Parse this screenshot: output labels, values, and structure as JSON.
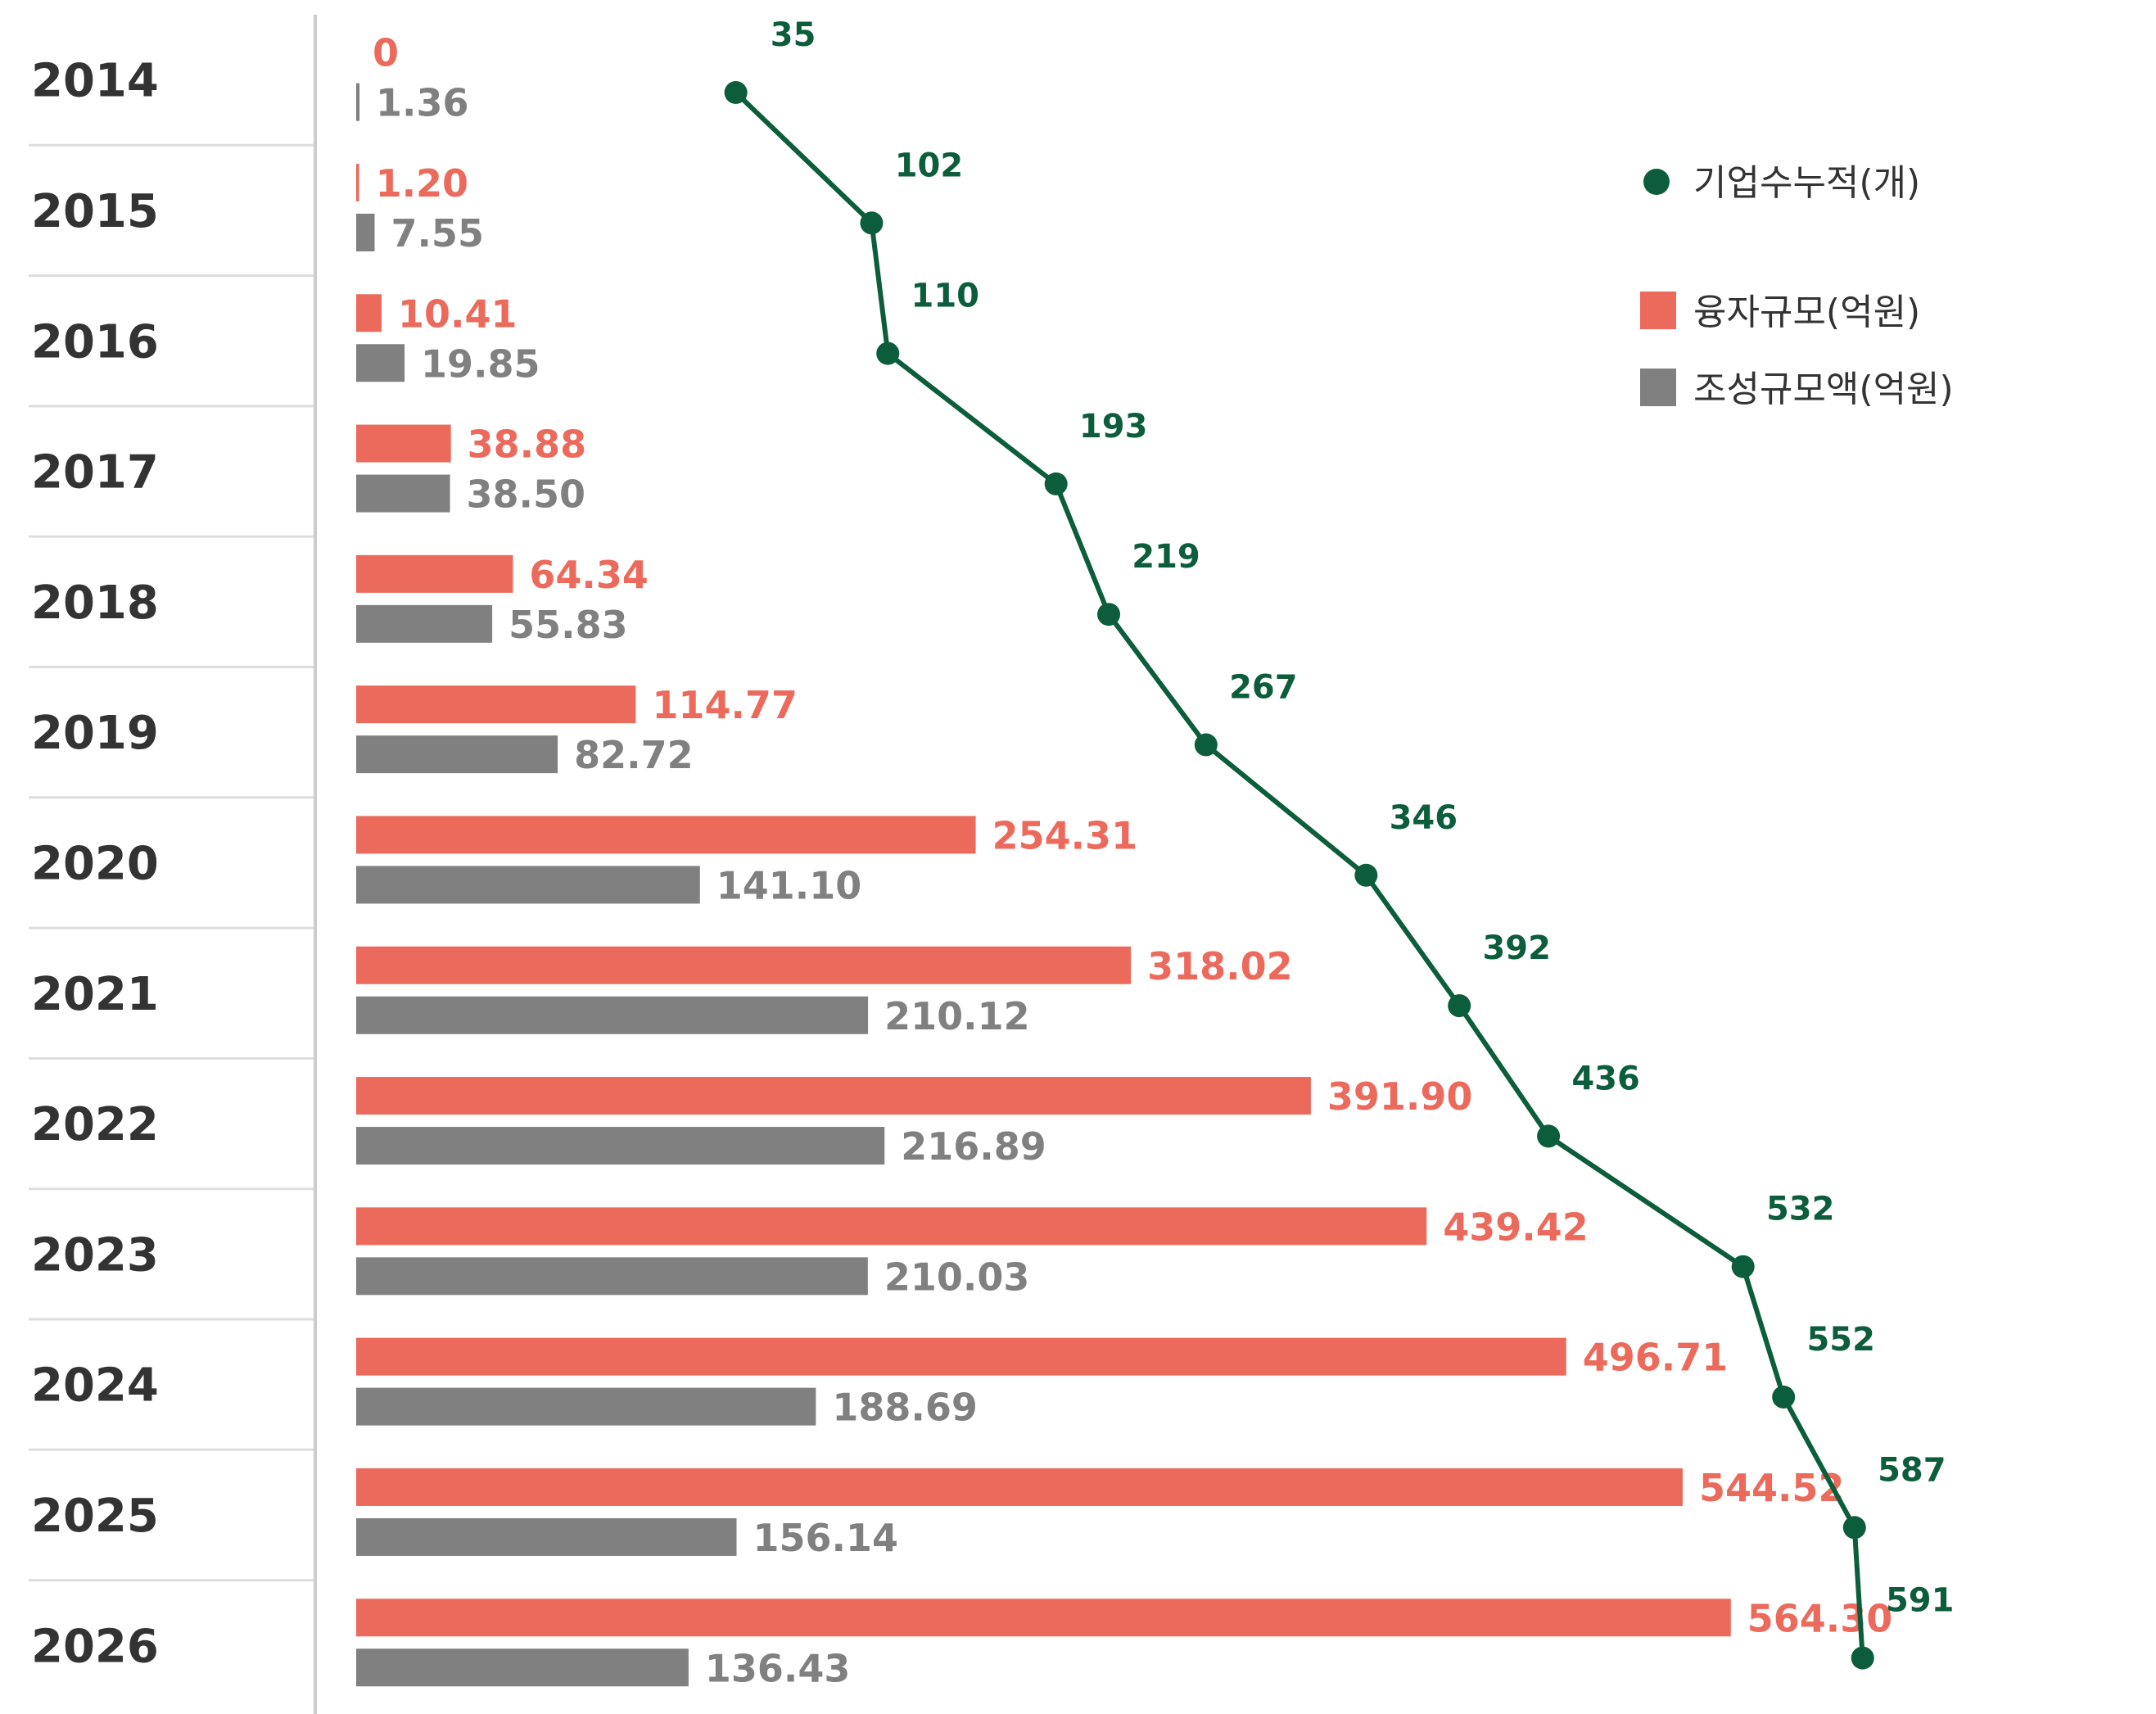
{
  "chart_data": {
    "type": "bar",
    "orientation": "horizontal",
    "categories": [
      "2014",
      "2015",
      "2016",
      "2017",
      "2018",
      "2019",
      "2020",
      "2021",
      "2022",
      "2023",
      "2024",
      "2025",
      "2026"
    ],
    "series": [
      {
        "name": "융자규모(억원)",
        "kind": "bar",
        "color": "#ec6a5c",
        "values": [
          0,
          1.2,
          10.41,
          38.88,
          64.34,
          114.77,
          254.31,
          318.02,
          391.9,
          439.42,
          496.71,
          544.52,
          564.3
        ],
        "labels": [
          "0",
          "1.20",
          "10.41",
          "38.88",
          "64.34",
          "114.77",
          "254.31",
          "318.02",
          "391.90",
          "439.42",
          "496.71",
          "544.52",
          "564.30"
        ]
      },
      {
        "name": "조성규모액(억원)",
        "kind": "bar",
        "color": "#808080",
        "values": [
          1.36,
          7.55,
          19.85,
          38.5,
          55.83,
          82.72,
          141.1,
          210.12,
          216.89,
          210.03,
          188.69,
          156.14,
          136.43
        ],
        "labels": [
          "1.36",
          "7.55",
          "19.85",
          "38.50",
          "55.83",
          "82.72",
          "141.10",
          "210.12",
          "216.89",
          "210.03",
          "188.69",
          "156.14",
          "136.43"
        ]
      },
      {
        "name": "기업수누적(개)",
        "kind": "line",
        "color": "#0b5d3b",
        "values": [
          35,
          102,
          110,
          193,
          219,
          267,
          346,
          392,
          436,
          532,
          552,
          587,
          591
        ],
        "labels": [
          "35",
          "102",
          "110",
          "193",
          "219",
          "267",
          "346",
          "392",
          "436",
          "532",
          "552",
          "587",
          "591"
        ]
      }
    ],
    "legend_position": "top-right",
    "grid": false,
    "xlim": [
      0,
      600
    ],
    "line_xlim": [
      0,
      600
    ]
  }
}
